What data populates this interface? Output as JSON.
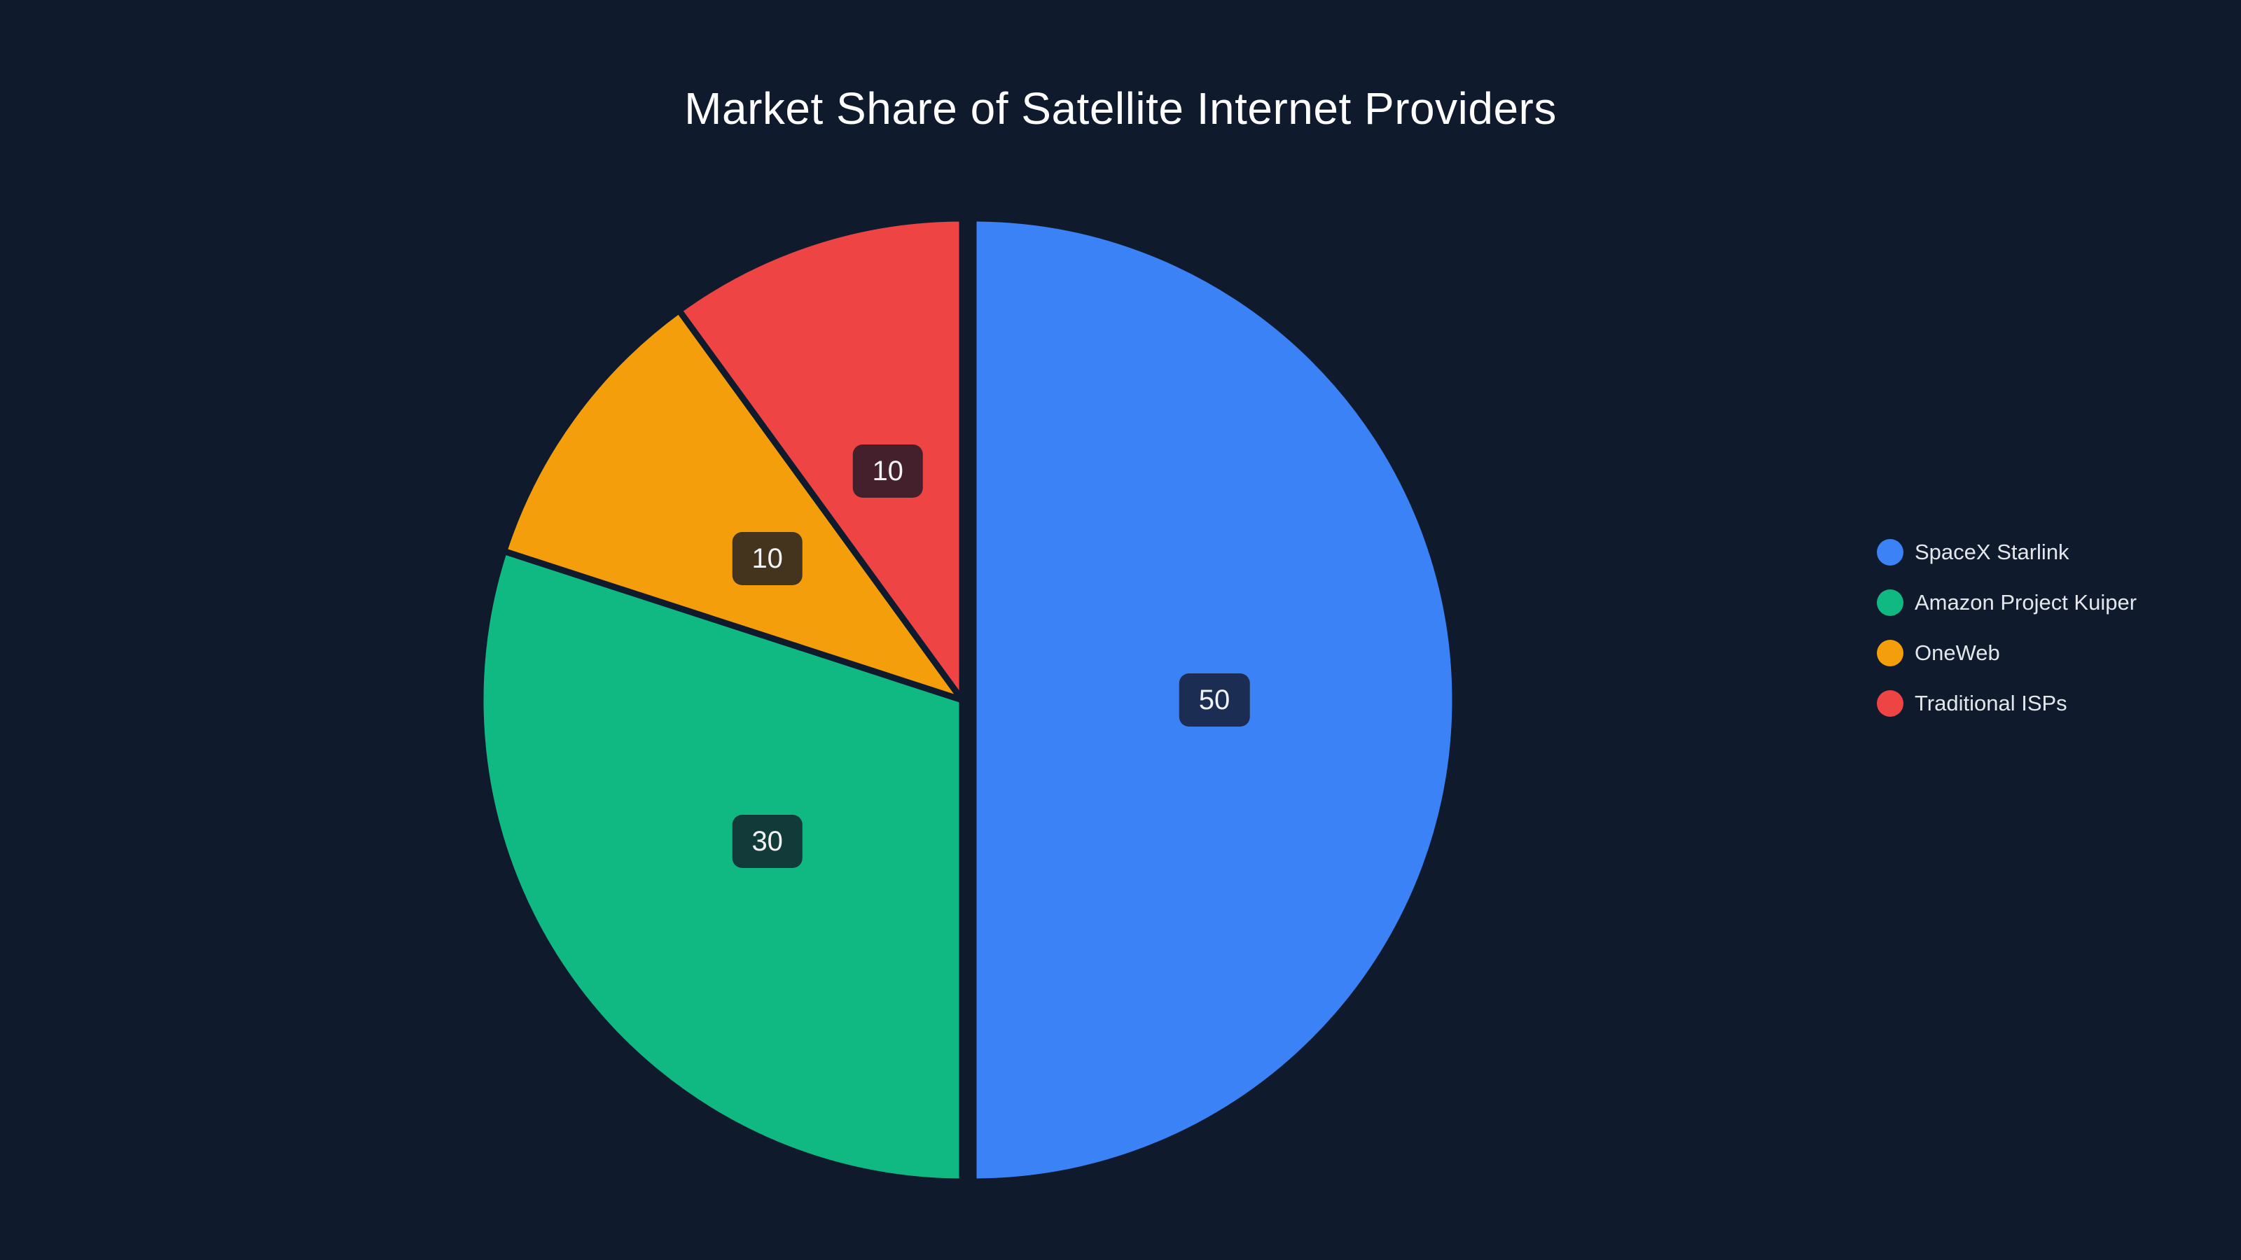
{
  "page": {
    "background": "#0f1b2d",
    "title_color": "#ffffff"
  },
  "chart_data": {
    "type": "pie",
    "title": "Market Share of Satellite Internet Providers",
    "labels": [
      "SpaceX Starlink",
      "Amazon Project Kuiper",
      "OneWeb",
      "Traditional ISPs"
    ],
    "values": [
      50,
      30,
      10,
      10
    ],
    "value_labels": [
      "50",
      "30",
      "10",
      "10"
    ],
    "colors": [
      "#3b82f6",
      "#10b981",
      "#f59e0b",
      "#ef4444"
    ],
    "value_label_box_color": "rgba(18,22,36,0.78)",
    "value_label_text_color": "#f1f3f5",
    "start_angle_deg": 0,
    "direction": "clockwise",
    "pulled_slice": "SpaceX Starlink",
    "legend_position": "right",
    "legend": {
      "items": [
        {
          "label": "SpaceX Starlink",
          "color": "#3b82f6"
        },
        {
          "label": "Amazon Project Kuiper",
          "color": "#10b981"
        },
        {
          "label": "OneWeb",
          "color": "#f59e0b"
        },
        {
          "label": "Traditional ISPs",
          "color": "#ef4444"
        }
      ]
    }
  }
}
